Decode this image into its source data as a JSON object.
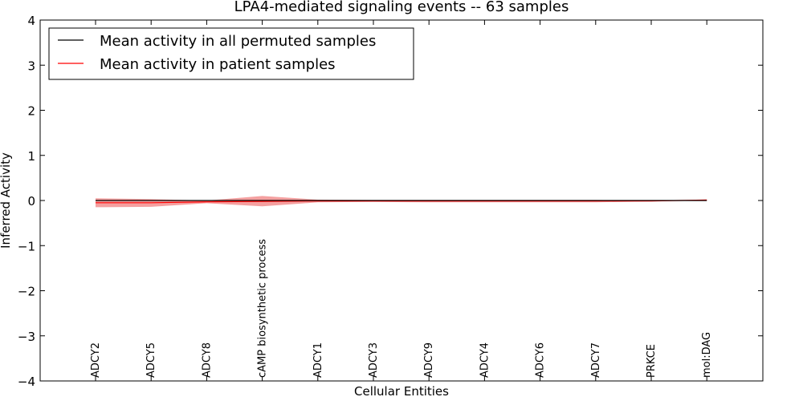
{
  "chart_data": {
    "type": "line",
    "title": "LPA4-mediated signaling events -- 63 samples",
    "xlabel": "Cellular Entities",
    "ylabel": "Inferred Activity",
    "ylim": [
      -4,
      4
    ],
    "yticks": [
      "4",
      "3",
      "2",
      "1",
      "0",
      "−1",
      "−2",
      "−3",
      "−4"
    ],
    "ytick_values": [
      4,
      3,
      2,
      1,
      0,
      -1,
      -2,
      -3,
      -4
    ],
    "grid": false,
    "legend_position": "top-left",
    "categories": [
      "ADCY2",
      "ADCY5",
      "ADCY8",
      "cAMP biosynthetic process",
      "ADCY1",
      "ADCY3",
      "ADCY9",
      "ADCY4",
      "ADCY6",
      "ADCY7",
      "PRKCE",
      "mol:DAG"
    ],
    "series": [
      {
        "name": "Mean activity in all permuted samples",
        "color": "#000000",
        "values": [
          0,
          0,
          0,
          0,
          0,
          0,
          0,
          0,
          0,
          0,
          0,
          0
        ]
      },
      {
        "name": "Mean activity in patient samples",
        "color": "#ff0000",
        "values": [
          -0.05,
          -0.05,
          -0.03,
          -0.02,
          -0.01,
          -0.01,
          -0.01,
          -0.01,
          -0.01,
          -0.01,
          -0.01,
          0.01
        ],
        "band_upper": [
          0.05,
          0.03,
          0.0,
          0.1,
          0.02,
          0.01,
          0.01,
          0.01,
          0.01,
          0.01,
          0.0,
          0.02
        ],
        "band_lower": [
          -0.15,
          -0.14,
          -0.06,
          -0.13,
          -0.04,
          -0.03,
          -0.04,
          -0.04,
          -0.04,
          -0.04,
          -0.02,
          0.0
        ],
        "band_color": "#f08080"
      }
    ]
  }
}
